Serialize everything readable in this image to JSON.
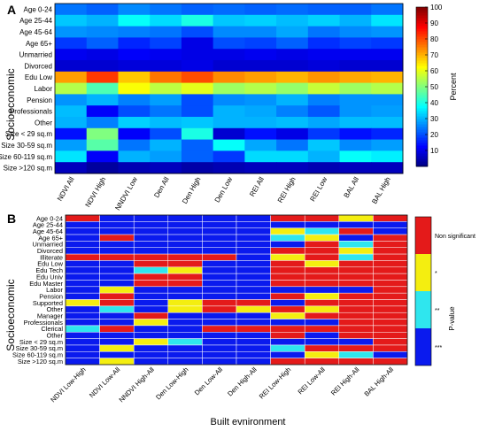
{
  "chart_data": [
    {
      "panel_label": "A",
      "type": "heatmap",
      "ylabel": "Socioeconomic",
      "colorbar_label": "Percent",
      "colorbar_ticks": [
        10,
        20,
        30,
        40,
        50,
        60,
        70,
        80,
        90,
        100
      ],
      "value_range": [
        0,
        100
      ],
      "columns": [
        "NDVI All",
        "NDVI High",
        "NNDVI Low",
        "Den All",
        "Den High",
        "Den Low",
        "REI All",
        "REI High",
        "REI Low",
        "BAL All",
        "BAL High"
      ],
      "rows": [
        "Age 0-24",
        "Age 25-44",
        "Age 45-64",
        "Age 65+",
        "Unmarried",
        "Divorced",
        "Edu Low",
        "Labor",
        "Pension",
        "Professionals",
        "Other",
        "Size < 29 sq.m",
        "Size 30-59 sq.m",
        "Size 60-119 sq.m",
        "Size >120 sq.m"
      ],
      "values": [
        [
          24,
          22,
          26,
          24,
          22,
          23,
          22,
          23,
          22,
          22,
          24
        ],
        [
          32,
          30,
          38,
          34,
          40,
          32,
          33,
          31,
          33,
          30,
          35
        ],
        [
          27,
          26,
          25,
          24,
          20,
          26,
          26,
          29,
          24,
          26,
          27
        ],
        [
          18,
          22,
          16,
          19,
          10,
          20,
          19,
          22,
          17,
          19,
          18
        ],
        [
          11,
          10,
          12,
          11,
          10,
          10,
          11,
          10,
          11,
          11,
          11
        ],
        [
          8,
          8,
          9,
          9,
          10,
          8,
          8,
          8,
          9,
          8,
          8
        ],
        [
          72,
          82,
          68,
          76,
          80,
          74,
          72,
          70,
          73,
          71,
          70
        ],
        [
          55,
          45,
          62,
          56,
          60,
          53,
          55,
          52,
          57,
          53,
          55
        ],
        [
          27,
          30,
          25,
          28,
          20,
          26,
          27,
          30,
          25,
          27,
          27
        ],
        [
          31,
          12,
          20,
          24,
          20,
          30,
          29,
          25,
          21,
          27,
          28
        ],
        [
          30,
          25,
          33,
          31,
          32,
          30,
          30,
          31,
          29,
          31,
          31
        ],
        [
          14,
          50,
          12,
          20,
          40,
          8,
          14,
          10,
          18,
          14,
          16
        ],
        [
          28,
          46,
          24,
          30,
          22,
          38,
          29,
          24,
          32,
          26,
          28
        ],
        [
          35,
          12,
          30,
          28,
          22,
          18,
          34,
          34,
          30,
          38,
          36
        ],
        [
          6,
          3,
          5,
          6,
          4,
          5,
          6,
          6,
          5,
          6,
          6
        ]
      ]
    },
    {
      "panel_label": "B",
      "type": "heatmap",
      "xlabel": "Built evnironment",
      "ylabel": "Socioeconomic",
      "colorbar_label": "P-value",
      "legend_categories": [
        "***",
        "**",
        "*",
        "Non significant"
      ],
      "category_colors": [
        "#0a1aee",
        "#2fe6ee",
        "#f4ee10",
        "#e41a1a"
      ],
      "columns": [
        "NDVI Low-High",
        "NDVI Low-All",
        "NNDVI High-All",
        "Den Low-High",
        "Den Low-All",
        "Den High-All",
        "REI Low-High",
        "REI Low-All",
        "REI High-All",
        "BAL High-All"
      ],
      "rows": [
        "Age 0-24",
        "Age 25-44",
        "Age 45-64",
        "Age 65+",
        "Unmarried",
        "Divorced",
        "Illiterate",
        "Edu Low",
        "Edu Tech",
        "Edu Univ",
        "Edu Master",
        "Labor",
        "Pension",
        "Supported",
        "Other",
        "Manager",
        "Professionals",
        "Clerical",
        "Other",
        "Size < 29 sq.m",
        "Size 30-59 sq.m",
        "Size 60-119 sq.m",
        "Size >120 sq.m"
      ],
      "values": [
        [
          3,
          0,
          0,
          0,
          0,
          0,
          3,
          3,
          2,
          3
        ],
        [
          0,
          0,
          0,
          0,
          0,
          0,
          0,
          0,
          0,
          0
        ],
        [
          0,
          0,
          0,
          0,
          0,
          0,
          2,
          1,
          3,
          0
        ],
        [
          0,
          3,
          0,
          0,
          0,
          0,
          1,
          2,
          0,
          3
        ],
        [
          0,
          0,
          0,
          0,
          0,
          0,
          0,
          3,
          1,
          3
        ],
        [
          0,
          0,
          0,
          0,
          0,
          0,
          3,
          3,
          2,
          3
        ],
        [
          3,
          3,
          3,
          3,
          3,
          0,
          2,
          3,
          1,
          3
        ],
        [
          0,
          0,
          3,
          3,
          0,
          0,
          3,
          2,
          3,
          3
        ],
        [
          0,
          0,
          1,
          2,
          0,
          0,
          3,
          3,
          3,
          3
        ],
        [
          0,
          0,
          3,
          3,
          0,
          0,
          3,
          3,
          3,
          3
        ],
        [
          0,
          0,
          3,
          3,
          0,
          0,
          3,
          3,
          3,
          3
        ],
        [
          0,
          2,
          0,
          0,
          0,
          0,
          0,
          0,
          0,
          3
        ],
        [
          0,
          3,
          0,
          0,
          0,
          0,
          3,
          2,
          3,
          3
        ],
        [
          2,
          3,
          0,
          2,
          3,
          3,
          0,
          3,
          3,
          3
        ],
        [
          0,
          1,
          0,
          2,
          3,
          2,
          3,
          2,
          3,
          3
        ],
        [
          0,
          0,
          3,
          0,
          0,
          0,
          2,
          3,
          3,
          3
        ],
        [
          0,
          0,
          2,
          0,
          0,
          0,
          0,
          0,
          3,
          3
        ],
        [
          1,
          3,
          0,
          0,
          3,
          3,
          3,
          3,
          3,
          3
        ],
        [
          0,
          0,
          0,
          0,
          0,
          0,
          3,
          0,
          3,
          3
        ],
        [
          0,
          0,
          2,
          1,
          0,
          0,
          0,
          0,
          0,
          3
        ],
        [
          0,
          2,
          0,
          0,
          0,
          0,
          1,
          3,
          3,
          3
        ],
        [
          0,
          0,
          0,
          0,
          0,
          0,
          0,
          2,
          1,
          0
        ],
        [
          0,
          2,
          0,
          0,
          0,
          0,
          3,
          3,
          3,
          3
        ]
      ]
    }
  ]
}
